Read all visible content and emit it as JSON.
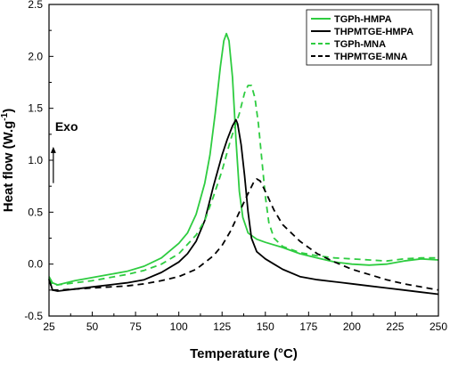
{
  "chart_data": {
    "type": "line",
    "xlabel": "Temperature (°C)",
    "ylabel_main": "Heat flow (W.g",
    "ylabel_sup": "-1",
    "ylabel_close": ")",
    "xlim": [
      25,
      250
    ],
    "ylim": [
      -0.5,
      2.5
    ],
    "x_ticks": [
      25,
      50,
      75,
      100,
      125,
      150,
      175,
      200,
      225,
      250
    ],
    "y_ticks": [
      -0.5,
      0.0,
      0.5,
      1.0,
      1.5,
      2.0,
      2.5
    ],
    "x_tick_labels": [
      "25",
      "50",
      "75",
      "100",
      "125",
      "150",
      "175",
      "200",
      "225",
      "250"
    ],
    "y_tick_labels": [
      "-0.5",
      "0.0",
      "0.5",
      "1.0",
      "1.5",
      "2.0",
      "2.5"
    ],
    "annotation": {
      "text": "Exo",
      "arrow_from": [
        27.5,
        0.78
      ],
      "arrow_to": [
        27.5,
        1.13
      ]
    },
    "legend_position": "top-right",
    "series": [
      {
        "name": "TGPh-HMPA",
        "color": "#2ecc40",
        "dash": "solid",
        "points": [
          [
            25,
            -0.12
          ],
          [
            27,
            -0.18
          ],
          [
            30,
            -0.2
          ],
          [
            40,
            -0.16
          ],
          [
            50,
            -0.13
          ],
          [
            60,
            -0.1
          ],
          [
            70,
            -0.07
          ],
          [
            80,
            -0.02
          ],
          [
            90,
            0.06
          ],
          [
            100,
            0.2
          ],
          [
            105,
            0.3
          ],
          [
            110,
            0.48
          ],
          [
            115,
            0.78
          ],
          [
            118,
            1.05
          ],
          [
            121,
            1.45
          ],
          [
            124,
            1.9
          ],
          [
            126,
            2.15
          ],
          [
            127.5,
            2.22
          ],
          [
            129,
            2.15
          ],
          [
            131,
            1.8
          ],
          [
            133,
            1.2
          ],
          [
            135,
            0.7
          ],
          [
            137,
            0.45
          ],
          [
            140,
            0.3
          ],
          [
            145,
            0.24
          ],
          [
            150,
            0.21
          ],
          [
            160,
            0.16
          ],
          [
            170,
            0.1
          ],
          [
            180,
            0.06
          ],
          [
            190,
            0.02
          ],
          [
            200,
            0.0
          ],
          [
            210,
            -0.01
          ],
          [
            220,
            0.0
          ],
          [
            230,
            0.03
          ],
          [
            240,
            0.05
          ],
          [
            250,
            0.04
          ]
        ]
      },
      {
        "name": "THPMTGE-HMPA",
        "color": "#000000",
        "dash": "solid",
        "points": [
          [
            25,
            -0.14
          ],
          [
            27,
            -0.25
          ],
          [
            30,
            -0.26
          ],
          [
            40,
            -0.24
          ],
          [
            50,
            -0.22
          ],
          [
            60,
            -0.2
          ],
          [
            70,
            -0.18
          ],
          [
            80,
            -0.15
          ],
          [
            90,
            -0.08
          ],
          [
            100,
            0.02
          ],
          [
            105,
            0.1
          ],
          [
            110,
            0.22
          ],
          [
            115,
            0.42
          ],
          [
            120,
            0.75
          ],
          [
            125,
            1.05
          ],
          [
            128,
            1.2
          ],
          [
            131,
            1.33
          ],
          [
            133,
            1.39
          ],
          [
            134,
            1.35
          ],
          [
            136,
            1.15
          ],
          [
            138,
            0.85
          ],
          [
            140,
            0.5
          ],
          [
            142,
            0.25
          ],
          [
            145,
            0.12
          ],
          [
            150,
            0.05
          ],
          [
            155,
            0.0
          ],
          [
            160,
            -0.05
          ],
          [
            170,
            -0.12
          ],
          [
            180,
            -0.15
          ],
          [
            190,
            -0.17
          ],
          [
            200,
            -0.19
          ],
          [
            210,
            -0.21
          ],
          [
            220,
            -0.23
          ],
          [
            230,
            -0.25
          ],
          [
            240,
            -0.27
          ],
          [
            250,
            -0.29
          ]
        ]
      },
      {
        "name": "TGPh-MNA",
        "color": "#2ecc40",
        "dash": "dashed",
        "points": [
          [
            25,
            -0.14
          ],
          [
            27,
            -0.2
          ],
          [
            30,
            -0.2
          ],
          [
            40,
            -0.18
          ],
          [
            50,
            -0.16
          ],
          [
            60,
            -0.13
          ],
          [
            70,
            -0.1
          ],
          [
            80,
            -0.06
          ],
          [
            90,
            0.0
          ],
          [
            100,
            0.1
          ],
          [
            110,
            0.28
          ],
          [
            115,
            0.42
          ],
          [
            120,
            0.65
          ],
          [
            125,
            0.9
          ],
          [
            130,
            1.2
          ],
          [
            135,
            1.45
          ],
          [
            138,
            1.65
          ],
          [
            140,
            1.72
          ],
          [
            142,
            1.72
          ],
          [
            144,
            1.6
          ],
          [
            146,
            1.35
          ],
          [
            148,
            1.0
          ],
          [
            150,
            0.65
          ],
          [
            152,
            0.4
          ],
          [
            155,
            0.25
          ],
          [
            160,
            0.17
          ],
          [
            170,
            0.11
          ],
          [
            180,
            0.08
          ],
          [
            190,
            0.06
          ],
          [
            200,
            0.05
          ],
          [
            210,
            0.04
          ],
          [
            220,
            0.03
          ],
          [
            230,
            0.05
          ],
          [
            240,
            0.06
          ],
          [
            250,
            0.06
          ]
        ]
      },
      {
        "name": "THPMTGE-MNA",
        "color": "#000000",
        "dash": "dashed",
        "points": [
          [
            25,
            -0.15
          ],
          [
            27,
            -0.25
          ],
          [
            30,
            -0.25
          ],
          [
            40,
            -0.24
          ],
          [
            50,
            -0.23
          ],
          [
            60,
            -0.22
          ],
          [
            70,
            -0.21
          ],
          [
            80,
            -0.19
          ],
          [
            90,
            -0.16
          ],
          [
            100,
            -0.12
          ],
          [
            110,
            -0.05
          ],
          [
            120,
            0.08
          ],
          [
            125,
            0.18
          ],
          [
            130,
            0.32
          ],
          [
            135,
            0.5
          ],
          [
            140,
            0.68
          ],
          [
            143,
            0.78
          ],
          [
            145,
            0.82
          ],
          [
            147,
            0.8
          ],
          [
            150,
            0.7
          ],
          [
            155,
            0.52
          ],
          [
            160,
            0.38
          ],
          [
            170,
            0.22
          ],
          [
            180,
            0.1
          ],
          [
            190,
            0.02
          ],
          [
            200,
            -0.05
          ],
          [
            210,
            -0.1
          ],
          [
            220,
            -0.15
          ],
          [
            230,
            -0.19
          ],
          [
            240,
            -0.22
          ],
          [
            250,
            -0.25
          ]
        ]
      }
    ]
  }
}
